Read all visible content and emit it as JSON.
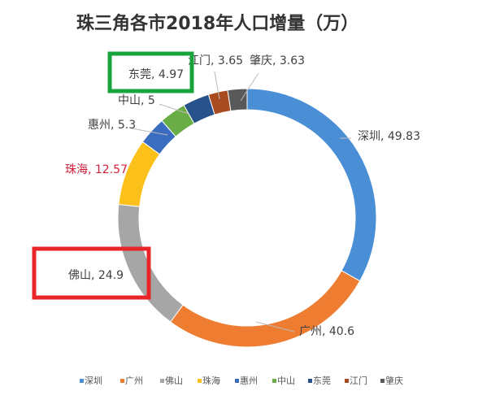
{
  "chart_data": {
    "type": "pie",
    "title": "珠三角各市2018年人口增量（万）",
    "categories": [
      "深圳",
      "广州",
      "佛山",
      "珠海",
      "惠州",
      "中山",
      "东莞",
      "江门",
      "肇庆"
    ],
    "values": [
      49.83,
      40.6,
      24.9,
      12.57,
      5.3,
      5,
      4.97,
      3.65,
      3.63
    ],
    "data_labels": [
      "深圳, 49.83",
      "广州, 40.6",
      "佛山, 24.9",
      "珠海, 12.57",
      "惠州, 5.3",
      "中山, 5",
      "东莞, 4.97",
      "江门, 3.65",
      "肇庆, 3.63"
    ],
    "colors": [
      "#4a8fd6",
      "#ee7d31",
      "#a6a6a6",
      "#fbc11a",
      "#3a6cbf",
      "#6aac46",
      "#27518a",
      "#a84b20",
      "#595959"
    ],
    "legend_position": "bottom",
    "style": "donut",
    "highlights": [
      {
        "label": "东莞, 4.97",
        "color": "#19a33c"
      },
      {
        "label": "佛山, 24.9",
        "color": "#e8262a"
      }
    ],
    "label_colors": {
      "珠海, 12.57": "#d0203a"
    }
  }
}
